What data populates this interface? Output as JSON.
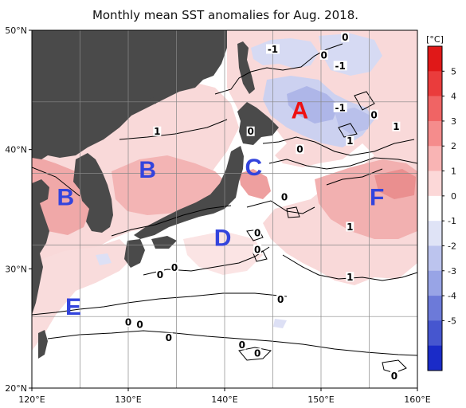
{
  "title": "Monthly mean SST anomalies for Aug. 2018.",
  "colors": {
    "land": "#4a4a4a",
    "ocean_neutral": "#ffffff",
    "warm_1": "#f9dada",
    "warm_2": "#f2b6b6",
    "warm_3": "#ea9090",
    "cool_1": "#d8dcf4",
    "cool_2": "#b5bcea",
    "region_warm_letter": "#ee1111",
    "region_letter": "#3344dd"
  },
  "axes": {
    "x_ticks": [
      "120°E",
      "130°E",
      "140°E",
      "150°E",
      "160°E"
    ],
    "y_ticks": [
      "50°N",
      "40°N",
      "30°N",
      "20°N"
    ],
    "x_range": [
      120,
      160
    ],
    "y_range": [
      20,
      50
    ]
  },
  "colorbar": {
    "unit": "[°C]",
    "ticks": [
      "5",
      "4",
      "3",
      "2",
      "1",
      "0",
      "-1",
      "-2",
      "-3",
      "-4",
      "-5"
    ],
    "colors": [
      "#e01818",
      "#ea3c3c",
      "#f06464",
      "#f58c8c",
      "#f9b4b4",
      "#fcd8d8",
      "#ffffff",
      "#dfe3f6",
      "#bcc4ee",
      "#98a4e6",
      "#6c7ad9",
      "#4656cf",
      "#1a2bc8"
    ]
  },
  "regions": [
    {
      "label": "A",
      "lon": 147.8,
      "lat": 43.3,
      "color": "#ee1111"
    },
    {
      "label": "B",
      "lon": 132.0,
      "lat": 38.3,
      "color": "#3344dd"
    },
    {
      "label": "B",
      "lon": 123.5,
      "lat": 36.0,
      "color": "#3344dd"
    },
    {
      "label": "C",
      "lon": 143.0,
      "lat": 38.5,
      "color": "#3344dd"
    },
    {
      "label": "D",
      "lon": 139.8,
      "lat": 32.6,
      "color": "#3344dd"
    },
    {
      "label": "E",
      "lon": 124.3,
      "lat": 26.8,
      "color": "#3344dd"
    },
    {
      "label": "F",
      "lon": 155.8,
      "lat": 36.0,
      "color": "#3344dd"
    }
  ],
  "contour_labels": [
    {
      "text": "-1",
      "lon": 145.0,
      "lat": 48.3
    },
    {
      "text": "0",
      "lon": 152.5,
      "lat": 49.3
    },
    {
      "text": "0",
      "lon": 150.3,
      "lat": 47.8
    },
    {
      "text": "-1",
      "lon": 152.0,
      "lat": 46.9
    },
    {
      "text": "-1",
      "lon": 152.0,
      "lat": 43.4
    },
    {
      "text": "0",
      "lon": 155.5,
      "lat": 42.8
    },
    {
      "text": "1",
      "lon": 157.8,
      "lat": 41.8
    },
    {
      "text": "1",
      "lon": 133.0,
      "lat": 41.4
    },
    {
      "text": "0",
      "lon": 142.7,
      "lat": 41.4
    },
    {
      "text": "0",
      "lon": 147.8,
      "lat": 39.9
    },
    {
      "text": "1",
      "lon": 153.0,
      "lat": 40.6
    },
    {
      "text": "0",
      "lon": 146.2,
      "lat": 35.9
    },
    {
      "text": "1",
      "lon": 153.0,
      "lat": 33.4
    },
    {
      "text": "0",
      "lon": 143.4,
      "lat": 32.9
    },
    {
      "text": "0",
      "lon": 143.4,
      "lat": 31.5
    },
    {
      "text": "0",
      "lon": 134.8,
      "lat": 30.0
    },
    {
      "text": "0",
      "lon": 133.3,
      "lat": 29.4
    },
    {
      "text": "1",
      "lon": 153.0,
      "lat": 29.2
    },
    {
      "text": "0",
      "lon": 145.8,
      "lat": 27.3
    },
    {
      "text": "0",
      "lon": 130.0,
      "lat": 25.4
    },
    {
      "text": "0",
      "lon": 131.2,
      "lat": 25.2
    },
    {
      "text": "0",
      "lon": 134.2,
      "lat": 24.1
    },
    {
      "text": "0",
      "lon": 141.8,
      "lat": 23.5
    },
    {
      "text": "0",
      "lon": 143.4,
      "lat": 22.8
    },
    {
      "text": "0",
      "lon": 157.6,
      "lat": 20.9
    }
  ]
}
